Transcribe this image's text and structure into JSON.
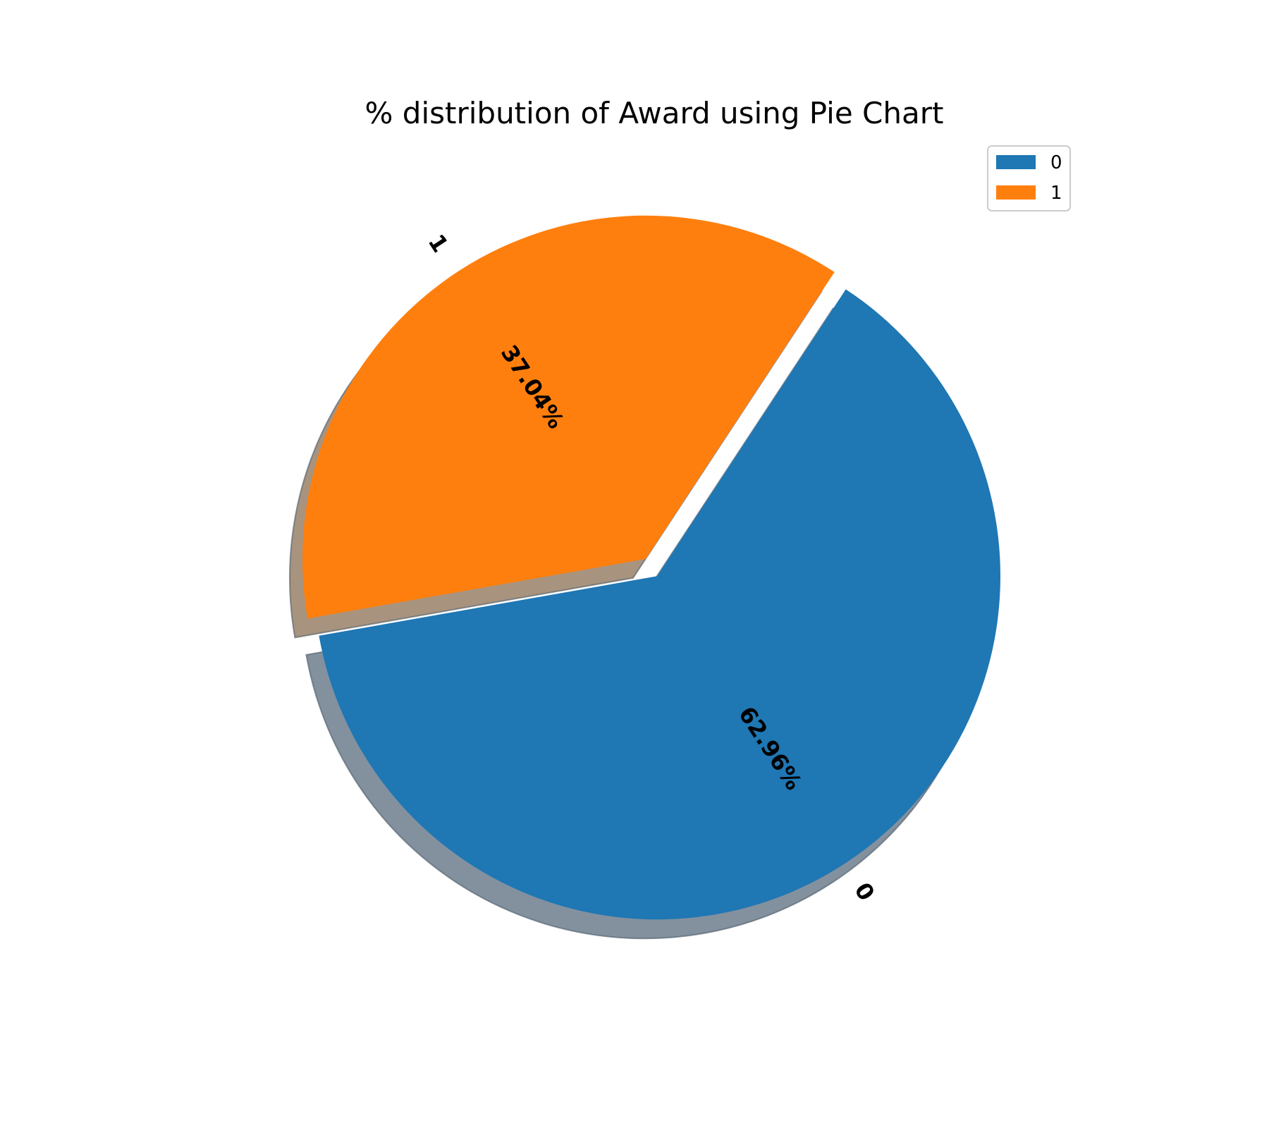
{
  "chart_data": {
    "type": "pie",
    "title": "% distribution of Award using Pie Chart",
    "slices": [
      {
        "label": "0",
        "value": 62.96,
        "pct_label": "62.96%",
        "color": "#1f77b4",
        "shadow_color": "#83919f"
      },
      {
        "label": "1",
        "value": 37.04,
        "pct_label": "37.04%",
        "color": "#ff7f0e",
        "shadow_color": "#a8937e"
      }
    ],
    "legend": {
      "placement": "top-right",
      "entries": [
        {
          "label": "0",
          "color": "#1f77b4"
        },
        {
          "label": "1",
          "color": "#ff7f0e"
        }
      ]
    },
    "exploded": true,
    "shadow": true
  }
}
